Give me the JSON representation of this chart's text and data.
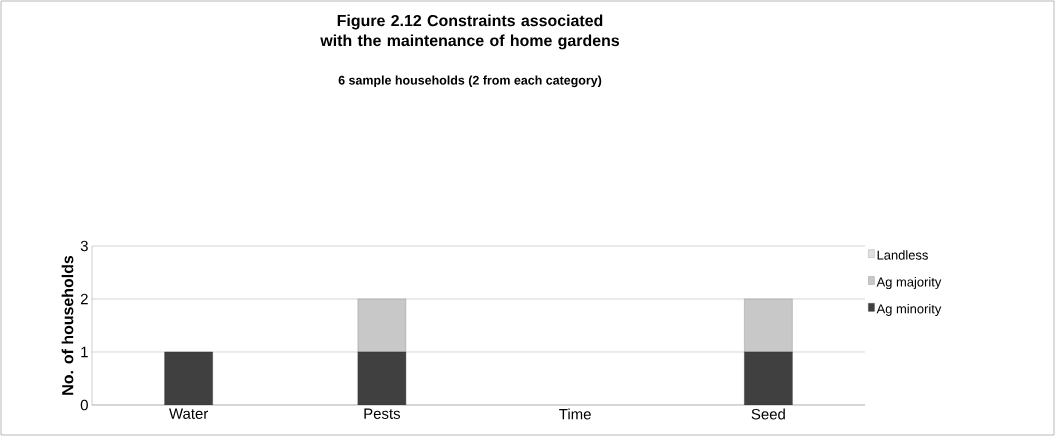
{
  "chart_data": {
    "type": "bar",
    "stacked": true,
    "title": "Figure 2.12 Constraints associated with the maintenance of home gardens",
    "subtitle": "6 sample households (2 from each category)",
    "ylabel": "No. of households",
    "categories": [
      "Water",
      "Pests",
      "Time",
      "Seed"
    ],
    "series": [
      {
        "name": "Ag minority",
        "color": "#404040",
        "values": [
          1,
          1,
          0,
          1
        ]
      },
      {
        "name": "Ag majority",
        "color": "#c8c8c8",
        "values": [
          0,
          1,
          0,
          1
        ]
      },
      {
        "name": "Landless",
        "color": "#e0e0e0",
        "values": [
          0,
          0,
          0,
          0
        ]
      }
    ],
    "ylim": [
      0,
      3
    ],
    "yticks": [
      0,
      1,
      2,
      3
    ],
    "grid": "y",
    "legend": "right"
  }
}
